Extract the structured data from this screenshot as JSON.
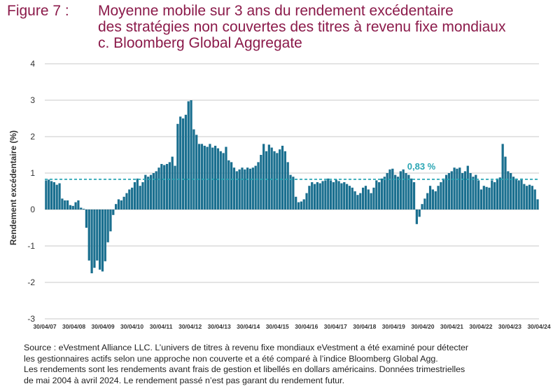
{
  "title": {
    "prefix": "Figure 7 :",
    "lines": [
      "Moyenne mobile sur 3 ans du rendement excédentaire",
      "des stratégies non couvertes des titres à revenu fixe mondiaux",
      "c. Bloomberg Global Aggregate"
    ]
  },
  "colors": {
    "bar": "#1a6f8f",
    "reference_line": "#2aa6b4",
    "grid": "#c8c8c8",
    "title": "#8b1a4a"
  },
  "chart_data": {
    "type": "bar",
    "ylabel": "Rendement excédentaire (%)",
    "ylim": [
      -3,
      4
    ],
    "yticks": [
      4,
      3,
      2,
      1,
      0,
      -1,
      -2,
      -3
    ],
    "grid": "horizontal",
    "x_tick_labels": [
      "30/04/07",
      "30/04/08",
      "30/04/09",
      "30/04/10",
      "30/04/11",
      "30/04/12",
      "30/04/13",
      "30/04/14",
      "30/04/15",
      "30/04/16",
      "30/04/17",
      "30/04/18",
      "30/04/19",
      "30/04/20",
      "30/04/21",
      "30/04/22",
      "30/04/23",
      "30/04/24"
    ],
    "reference_line": {
      "value": 0.83,
      "label": "0,83 %"
    },
    "values": [
      0.8,
      0.82,
      0.78,
      0.75,
      0.68,
      0.72,
      0.3,
      0.25,
      0.25,
      0.12,
      0.1,
      0.2,
      0.25,
      0.05,
      0.02,
      -0.5,
      -1.4,
      -1.75,
      -1.6,
      -1.4,
      -1.65,
      -1.7,
      -1.42,
      -0.9,
      -0.6,
      -0.15,
      0.15,
      0.28,
      0.25,
      0.35,
      0.45,
      0.55,
      0.6,
      0.75,
      0.85,
      0.65,
      0.75,
      0.95,
      0.9,
      0.95,
      1.0,
      1.05,
      1.15,
      1.25,
      1.22,
      1.25,
      1.3,
      1.45,
      1.2,
      2.35,
      2.55,
      2.5,
      2.6,
      2.97,
      3.0,
      2.2,
      2.05,
      1.8,
      1.8,
      1.75,
      1.72,
      1.8,
      1.7,
      1.75,
      1.68,
      1.6,
      1.55,
      1.72,
      1.35,
      1.3,
      1.15,
      1.05,
      1.1,
      1.15,
      1.1,
      1.15,
      1.12,
      1.15,
      1.2,
      1.3,
      1.5,
      1.8,
      1.6,
      1.78,
      1.7,
      1.6,
      1.55,
      1.65,
      1.75,
      1.6,
      1.3,
      0.95,
      0.9,
      0.35,
      0.2,
      0.22,
      0.28,
      0.45,
      0.65,
      0.75,
      0.7,
      0.75,
      0.72,
      0.78,
      0.8,
      0.85,
      0.8,
      0.75,
      0.82,
      0.78,
      0.72,
      0.75,
      0.7,
      0.65,
      0.6,
      0.5,
      0.4,
      0.45,
      0.6,
      0.65,
      0.55,
      0.45,
      0.6,
      0.8,
      0.75,
      0.85,
      0.9,
      1.0,
      1.1,
      1.12,
      0.95,
      0.9,
      1.05,
      1.1,
      1.0,
      0.95,
      0.85,
      0.75,
      -0.4,
      -0.2,
      0.15,
      0.3,
      0.45,
      0.65,
      0.55,
      0.5,
      0.65,
      0.75,
      0.85,
      0.95,
      1.0,
      1.05,
      1.15,
      1.12,
      1.15,
      1.0,
      1.05,
      1.2,
      1.0,
      0.9,
      0.95,
      0.8,
      0.55,
      0.65,
      0.62,
      0.6,
      0.8,
      0.75,
      0.85,
      0.88,
      1.8,
      1.45,
      1.05,
      1.0,
      0.9,
      0.85,
      0.8,
      0.85,
      0.7,
      0.65,
      0.68,
      0.65,
      0.55,
      0.28
    ]
  },
  "source": {
    "lines": [
      "Source : eVestment Alliance LLC. L’univers de titres à revenu fixe mondiaux eVestment a été examiné pour détecter",
      "les gestionnaires actifs selon une approche non couverte et a été comparé à l’indice Bloomberg Global Agg.",
      "Les rendements sont les rendements avant frais de gestion et libellés en dollars américains. Données trimestrielles",
      "de mai 2004 à avril 2024. Le rendement passé n’est pas garant du rendement futur."
    ]
  }
}
